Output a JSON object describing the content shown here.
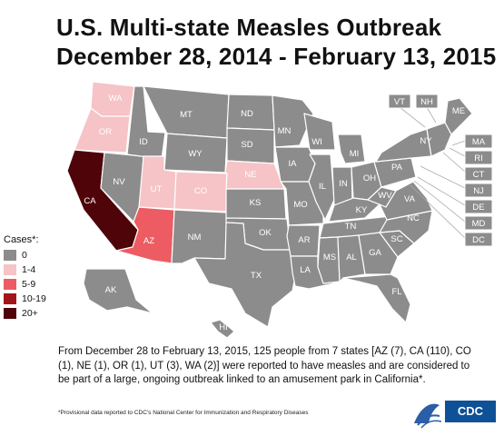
{
  "title": {
    "line1": "U.S. Multi-state Measles Outbreak",
    "line2": "December 28, 2014 - February 13, 2015"
  },
  "legend": {
    "title": "Cases*:",
    "items": [
      {
        "label": "0",
        "color": "#8c8c8c"
      },
      {
        "label": "1-4",
        "color": "#f6c3c6"
      },
      {
        "label": "5-9",
        "color": "#ec5c62"
      },
      {
        "label": "10-19",
        "color": "#a3131a"
      },
      {
        "label": "20+",
        "color": "#4e0408"
      }
    ]
  },
  "states": {
    "WA": {
      "label": "WA",
      "cases": 2,
      "color": "#f6c3c6"
    },
    "OR": {
      "label": "OR",
      "cases": 1,
      "color": "#f6c3c6"
    },
    "CA": {
      "label": "CA",
      "cases": 110,
      "color": "#4e0408"
    },
    "AZ": {
      "label": "AZ",
      "cases": 7,
      "color": "#ec5c62"
    },
    "UT": {
      "label": "UT",
      "cases": 3,
      "color": "#f6c3c6"
    },
    "CO": {
      "label": "CO",
      "cases": 1,
      "color": "#f6c3c6"
    },
    "NE": {
      "label": "NE",
      "cases": 1,
      "color": "#f6c3c6"
    },
    "ID": {
      "label": "ID"
    },
    "MT": {
      "label": "MT"
    },
    "WY": {
      "label": "WY"
    },
    "NV": {
      "label": "NV"
    },
    "NM": {
      "label": "NM"
    },
    "ND": {
      "label": "ND"
    },
    "SD": {
      "label": "SD"
    },
    "KS": {
      "label": "KS"
    },
    "OK": {
      "label": "OK"
    },
    "TX": {
      "label": "TX"
    },
    "MN": {
      "label": "MN"
    },
    "IA": {
      "label": "IA"
    },
    "MO": {
      "label": "MO"
    },
    "AR": {
      "label": "AR"
    },
    "LA": {
      "label": "LA"
    },
    "WI": {
      "label": "WI"
    },
    "IL": {
      "label": "IL"
    },
    "MI": {
      "label": "MI"
    },
    "IN": {
      "label": "IN"
    },
    "OH": {
      "label": "OH"
    },
    "KY": {
      "label": "KY"
    },
    "TN": {
      "label": "TN"
    },
    "MS": {
      "label": "MS"
    },
    "AL": {
      "label": "AL"
    },
    "GA": {
      "label": "GA"
    },
    "FL": {
      "label": "FL"
    },
    "SC": {
      "label": "SC"
    },
    "NC": {
      "label": "NC"
    },
    "VA": {
      "label": "VA"
    },
    "WV": {
      "label": "WV"
    },
    "PA": {
      "label": "PA"
    },
    "NY": {
      "label": "NY"
    },
    "ME": {
      "label": "ME"
    },
    "AK": {
      "label": "AK"
    },
    "HI": {
      "label": "HI"
    }
  },
  "small_states": {
    "VT": "VT",
    "NH": "NH",
    "MA": "MA",
    "RI": "RI",
    "CT": "CT",
    "NJ": "NJ",
    "DE": "DE",
    "MD": "MD",
    "DC": "DC"
  },
  "description": "From December 28 to February 13, 2015, 125 people from 7 states [AZ (7), CA (110), CO (1), NE (1), OR (1), UT (3), WA (2)] were reported to have measles and are considered to be part of a large, ongoing outbreak linked to an amusement park in California*.",
  "footnote": "*Provisional data reported to CDC's National Center for Immunization and Respiratory Diseases",
  "logo": {
    "text": "CDC"
  }
}
